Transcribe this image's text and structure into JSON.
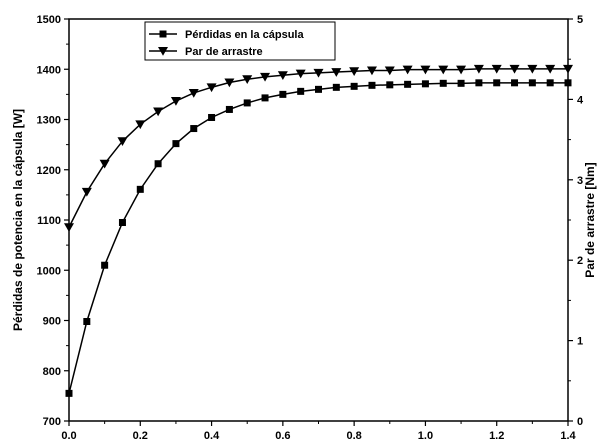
{
  "chart_data": {
    "type": "line",
    "title": "",
    "x": [
      0.0,
      0.05,
      0.1,
      0.15,
      0.2,
      0.25,
      0.3,
      0.35,
      0.4,
      0.45,
      0.5,
      0.55,
      0.6,
      0.65,
      0.7,
      0.75,
      0.8,
      0.85,
      0.9,
      0.95,
      1.0,
      1.05,
      1.1,
      1.15,
      1.2,
      1.25,
      1.3,
      1.35,
      1.4
    ],
    "xlim": [
      0,
      1.4
    ],
    "x_ticks": [
      "0.0",
      "0.2",
      "0.4",
      "0.6",
      "0.8",
      "1.0",
      "1.2",
      "1.4"
    ],
    "ylabel_left": "Pérdidas de potencia en la cápsula [W]",
    "ylim_left": [
      700,
      1500
    ],
    "y_ticks_left": [
      "700",
      "800",
      "900",
      "1000",
      "1100",
      "1200",
      "1300",
      "1400",
      "1500"
    ],
    "ylabel_right": "Par de arrastre [Nm]",
    "ylim_right": [
      0,
      5
    ],
    "y_ticks_right": [
      "0",
      "1",
      "2",
      "3",
      "4",
      "5"
    ],
    "legend_position": "top-center",
    "grid": false,
    "series": [
      {
        "name": "Pérdidas en la cápsula",
        "axis": "left",
        "marker": "square",
        "color": "#000000",
        "values": [
          755,
          898,
          1010,
          1095,
          1161,
          1212,
          1252,
          1282,
          1304,
          1320,
          1333,
          1343,
          1350,
          1356,
          1360,
          1364,
          1366,
          1368,
          1369,
          1370,
          1371,
          1372,
          1372,
          1373,
          1373,
          1373,
          1373,
          1373,
          1373
        ]
      },
      {
        "name": "Par de arrastre",
        "axis": "right",
        "marker": "triangle-down",
        "color": "#000000",
        "values": [
          2.41,
          2.85,
          3.2,
          3.48,
          3.69,
          3.85,
          3.98,
          4.08,
          4.15,
          4.21,
          4.25,
          4.28,
          4.3,
          4.32,
          4.33,
          4.34,
          4.35,
          4.36,
          4.36,
          4.37,
          4.37,
          4.37,
          4.37,
          4.38,
          4.38,
          4.38,
          4.38,
          4.38,
          4.38
        ]
      }
    ]
  }
}
